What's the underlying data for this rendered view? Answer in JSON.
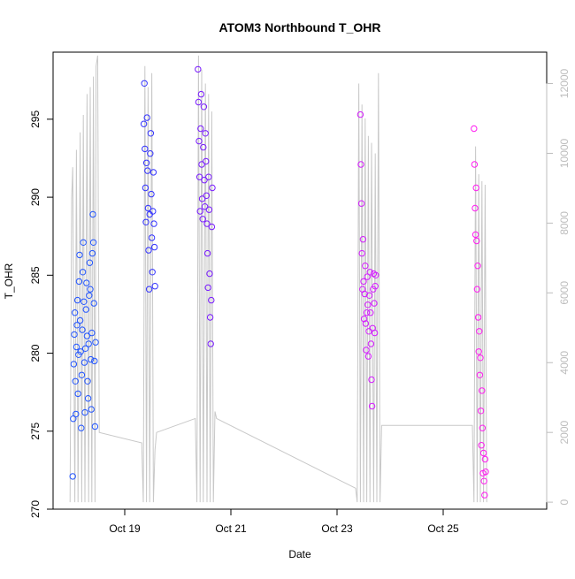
{
  "chart_data": {
    "type": "scatter",
    "title": "ATOM3 Northbound T_OHR",
    "xlabel": "Date",
    "ylabel": "T_OHR",
    "x_unit": "days (October)",
    "xlim": [
      17.65,
      26.95
    ],
    "ylim": [
      270.0,
      299.3
    ],
    "x_ticks": [
      {
        "value": 19,
        "label": "Oct 19"
      },
      {
        "value": 21,
        "label": "Oct 21"
      },
      {
        "value": 23,
        "label": "Oct 23"
      },
      {
        "value": 25,
        "label": "Oct 25"
      }
    ],
    "y_ticks": [
      270,
      275,
      280,
      285,
      290,
      295
    ],
    "secondary_axis": {
      "ylim": [
        -200,
        12900
      ],
      "ticks": [
        0,
        2000,
        4000,
        6000,
        8000,
        10000,
        12000
      ],
      "color": "#bdbdbd"
    },
    "grid": false,
    "legend": "none",
    "series": [
      {
        "color": "#2255ff",
        "values": [
          [
            18.02,
            272.1
          ],
          [
            18.03,
            275.8
          ],
          [
            18.04,
            279.3
          ],
          [
            18.05,
            281.2
          ],
          [
            18.06,
            282.6
          ],
          [
            18.07,
            278.2
          ],
          [
            18.08,
            276.1
          ],
          [
            18.09,
            280.4
          ],
          [
            18.1,
            281.8
          ],
          [
            18.11,
            283.4
          ],
          [
            18.12,
            277.4
          ],
          [
            18.13,
            279.9
          ],
          [
            18.14,
            284.6
          ],
          [
            18.15,
            286.3
          ],
          [
            18.16,
            282.1
          ],
          [
            18.17,
            280.1
          ],
          [
            18.18,
            275.2
          ],
          [
            18.19,
            278.6
          ],
          [
            18.2,
            281.5
          ],
          [
            18.21,
            285.2
          ],
          [
            18.22,
            287.1
          ],
          [
            18.23,
            283.3
          ],
          [
            18.24,
            279.4
          ],
          [
            18.25,
            276.2
          ],
          [
            18.26,
            280.3
          ],
          [
            18.27,
            282.8
          ],
          [
            18.28,
            284.5
          ],
          [
            18.29,
            281.1
          ],
          [
            18.3,
            278.2
          ],
          [
            18.31,
            277.1
          ],
          [
            18.32,
            280.6
          ],
          [
            18.33,
            283.7
          ],
          [
            18.34,
            285.8
          ],
          [
            18.35,
            284.1
          ],
          [
            18.36,
            279.6
          ],
          [
            18.37,
            276.4
          ],
          [
            18.38,
            281.3
          ],
          [
            18.39,
            286.4
          ],
          [
            18.4,
            288.9
          ],
          [
            18.41,
            287.1
          ],
          [
            18.42,
            283.2
          ],
          [
            18.43,
            279.5
          ],
          [
            18.44,
            275.3
          ],
          [
            18.45,
            280.7
          ]
        ]
      },
      {
        "color": "#3333ff",
        "values": [
          [
            19.36,
            294.7
          ],
          [
            19.37,
            297.3
          ],
          [
            19.38,
            293.1
          ],
          [
            19.39,
            290.6
          ],
          [
            19.4,
            288.4
          ],
          [
            19.41,
            292.2
          ],
          [
            19.42,
            295.1
          ],
          [
            19.43,
            291.7
          ],
          [
            19.44,
            289.3
          ],
          [
            19.45,
            286.6
          ],
          [
            19.46,
            284.1
          ],
          [
            19.47,
            288.9
          ],
          [
            19.48,
            292.8
          ],
          [
            19.49,
            294.1
          ],
          [
            19.5,
            290.2
          ],
          [
            19.51,
            287.4
          ],
          [
            19.52,
            285.2
          ],
          [
            19.53,
            289.1
          ],
          [
            19.54,
            291.6
          ],
          [
            19.55,
            288.3
          ],
          [
            19.56,
            286.8
          ],
          [
            19.57,
            284.3
          ]
        ]
      },
      {
        "color": "#7a1cff",
        "values": [
          [
            20.38,
            298.2
          ],
          [
            20.39,
            296.1
          ],
          [
            20.4,
            293.6
          ],
          [
            20.41,
            291.3
          ],
          [
            20.42,
            289.1
          ],
          [
            20.43,
            294.4
          ],
          [
            20.44,
            296.6
          ],
          [
            20.45,
            292.1
          ],
          [
            20.46,
            289.9
          ],
          [
            20.47,
            288.6
          ],
          [
            20.48,
            293.2
          ],
          [
            20.49,
            295.8
          ],
          [
            20.5,
            291.1
          ],
          [
            20.51,
            289.4
          ],
          [
            20.52,
            294.1
          ],
          [
            20.53,
            292.3
          ],
          [
            20.54,
            290.1
          ],
          [
            20.55,
            288.3
          ],
          [
            20.56,
            286.4
          ],
          [
            20.57,
            284.2
          ],
          [
            20.58,
            291.3
          ],
          [
            20.59,
            289.2
          ],
          [
            20.6,
            285.1
          ],
          [
            20.61,
            282.3
          ],
          [
            20.62,
            280.6
          ],
          [
            20.63,
            283.4
          ],
          [
            20.64,
            288.1
          ],
          [
            20.65,
            290.6
          ]
        ]
      },
      {
        "color": "#d41cff",
        "values": [
          [
            23.44,
            295.3
          ],
          [
            23.45,
            292.1
          ],
          [
            23.46,
            289.6
          ],
          [
            23.47,
            286.4
          ],
          [
            23.48,
            284.1
          ],
          [
            23.49,
            287.3
          ],
          [
            23.5,
            284.6
          ],
          [
            23.51,
            282.2
          ],
          [
            23.52,
            283.8
          ],
          [
            23.53,
            285.6
          ],
          [
            23.54,
            281.9
          ],
          [
            23.55,
            280.2
          ],
          [
            23.56,
            282.6
          ],
          [
            23.57,
            284.9
          ],
          [
            23.58,
            283.1
          ],
          [
            23.59,
            279.8
          ],
          [
            23.6,
            281.4
          ],
          [
            23.61,
            283.7
          ],
          [
            23.62,
            285.2
          ],
          [
            23.63,
            282.6
          ],
          [
            23.64,
            280.6
          ],
          [
            23.65,
            278.3
          ],
          [
            23.66,
            276.6
          ],
          [
            23.67,
            281.6
          ],
          [
            23.68,
            284.1
          ],
          [
            23.69,
            285.1
          ],
          [
            23.7,
            283.2
          ],
          [
            23.71,
            281.3
          ],
          [
            23.72,
            284.3
          ],
          [
            23.73,
            285.0
          ]
        ]
      },
      {
        "color": "#ff1cf0",
        "values": [
          [
            25.58,
            294.4
          ],
          [
            25.59,
            292.1
          ],
          [
            25.6,
            289.3
          ],
          [
            25.61,
            287.6
          ],
          [
            25.62,
            290.6
          ],
          [
            25.63,
            287.2
          ],
          [
            25.64,
            284.1
          ],
          [
            25.65,
            285.6
          ],
          [
            25.66,
            282.3
          ],
          [
            25.67,
            280.1
          ],
          [
            25.68,
            281.4
          ],
          [
            25.69,
            278.6
          ],
          [
            25.7,
            279.7
          ],
          [
            25.71,
            276.3
          ],
          [
            25.72,
            274.1
          ],
          [
            25.73,
            277.6
          ],
          [
            25.74,
            275.2
          ],
          [
            25.75,
            272.3
          ],
          [
            25.76,
            273.6
          ],
          [
            25.77,
            271.8
          ],
          [
            25.78,
            270.9
          ],
          [
            25.79,
            273.2
          ],
          [
            25.8,
            272.4
          ]
        ]
      }
    ],
    "secondary_series": {
      "color": "#c8c8c8",
      "x": [
        17.97,
        18.0,
        18.02,
        18.06,
        18.09,
        18.12,
        18.16,
        18.19,
        18.22,
        18.25,
        18.29,
        18.32,
        18.35,
        18.38,
        18.41,
        18.44,
        18.46,
        18.49,
        18.52,
        19.32,
        19.35,
        19.38,
        19.41,
        19.44,
        19.47,
        19.51,
        19.54,
        19.57,
        19.6,
        20.33,
        20.36,
        20.39,
        20.42,
        20.45,
        20.48,
        20.52,
        20.55,
        20.58,
        20.61,
        20.64,
        20.67,
        20.7,
        20.73,
        23.35,
        23.38,
        23.41,
        23.44,
        23.47,
        23.5,
        23.53,
        23.56,
        23.59,
        23.62,
        23.65,
        23.69,
        23.72,
        23.75,
        23.78,
        23.81,
        23.84,
        23.87,
        23.9,
        25.55,
        25.58,
        25.61,
        25.64,
        25.67,
        25.7,
        25.73,
        25.76,
        25.79,
        25.82
      ],
      "y": [
        0,
        8700,
        9600,
        0,
        10100,
        0,
        10600,
        0,
        11100,
        0,
        11700,
        0,
        11900,
        0,
        12200,
        0,
        12500,
        12800,
        2000,
        1700,
        0,
        12500,
        0,
        11900,
        0,
        12300,
        0,
        1500,
        2000,
        2400,
        0,
        12800,
        0,
        12400,
        0,
        12000,
        0,
        11700,
        0,
        11200,
        0,
        2600,
        2400,
        400,
        0,
        12000,
        0,
        11400,
        0,
        11000,
        0,
        10500,
        0,
        10300,
        0,
        10000,
        0,
        12300,
        0,
        2200,
        2200,
        2200,
        2200,
        0,
        10200,
        0,
        9400,
        0,
        9200,
        0,
        9100,
        0
      ]
    }
  }
}
